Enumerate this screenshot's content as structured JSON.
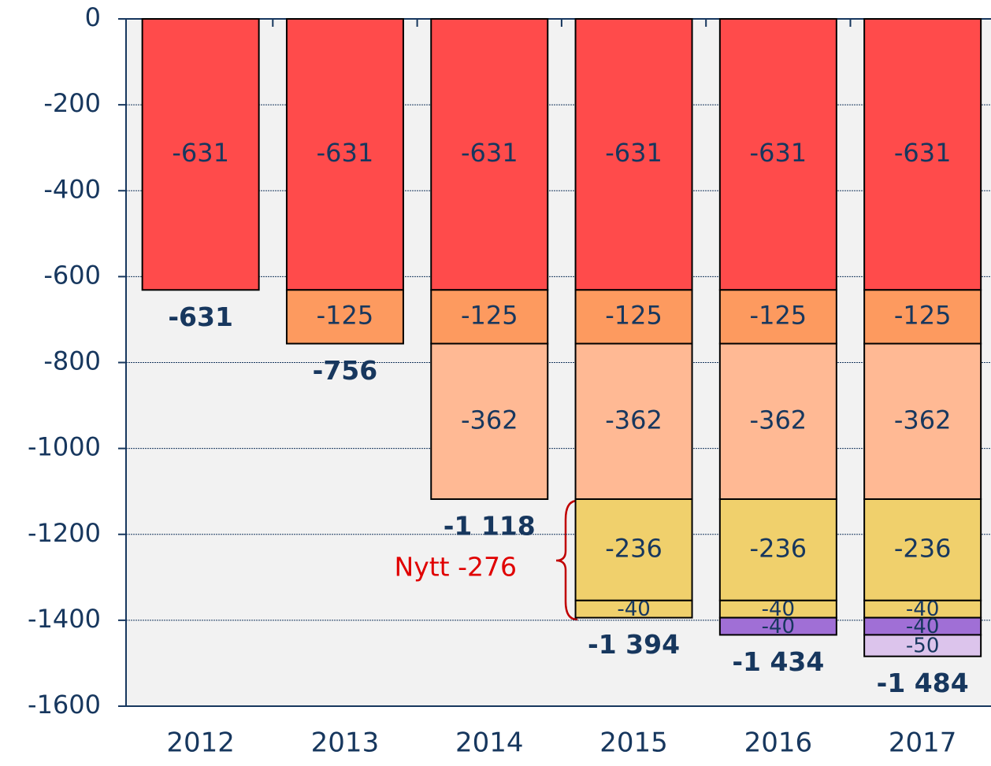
{
  "chart_data": {
    "type": "stacked_bar",
    "categories": [
      "2012",
      "2013",
      "2014",
      "2015",
      "2016",
      "2017"
    ],
    "series": [
      {
        "color": "#ff4b4b",
        "values": [
          -631,
          -631,
          -631,
          -631,
          -631,
          -631
        ]
      },
      {
        "color": "#fd9a5f",
        "values": [
          null,
          -125,
          -125,
          -125,
          -125,
          -125
        ]
      },
      {
        "color": "#ffb994",
        "values": [
          null,
          null,
          -362,
          -362,
          -362,
          -362
        ]
      },
      {
        "color": "#f0d06c",
        "values": [
          null,
          null,
          null,
          -236,
          -236,
          -236
        ]
      },
      {
        "color": "#f0d06c",
        "values": [
          null,
          null,
          null,
          -40,
          -40,
          -40
        ]
      },
      {
        "color": "#a06fd6",
        "values": [
          null,
          null,
          null,
          null,
          -40,
          -40
        ]
      },
      {
        "color": "#dcc4ec",
        "values": [
          null,
          null,
          null,
          null,
          null,
          -50
        ]
      }
    ],
    "totals": {
      "values": [
        -631,
        -756,
        -1118,
        -1394,
        -1434,
        -1484
      ],
      "value_labels": [
        "-631",
        "-756",
        "-1 118",
        "-1 394",
        "-1 434",
        "-1 484"
      ]
    },
    "annotation": "Nytt -276",
    "ylim": [
      -1600,
      0
    ],
    "yticks": [
      0,
      -200,
      -400,
      -600,
      -800,
      -1000,
      -1200,
      -1400,
      -1600
    ],
    "grid": true
  }
}
